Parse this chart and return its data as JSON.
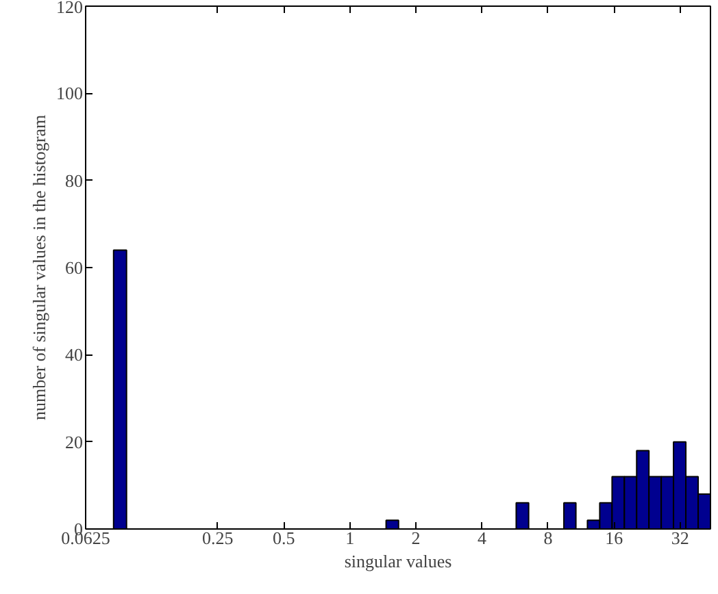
{
  "chart_data": {
    "type": "histogram",
    "xlabel": "singular values",
    "ylabel": "number of singular values in the histogram",
    "bins": [
      0.0838,
      0.096,
      1.463,
      1.667,
      5.73,
      6.53,
      9.45,
      10.72,
      12.1,
      13.77,
      15.67,
      17.83,
      20.28,
      23.07,
      26.25,
      29.86,
      33.98,
      38.67,
      44.0
    ],
    "values": [
      64,
      0,
      2,
      0,
      6,
      0,
      6,
      0,
      2,
      6,
      12,
      12,
      18,
      12,
      12,
      20,
      12,
      8
    ],
    "color": "#00008f",
    "log": "x",
    "xlim": [
      0.0625,
      44.0
    ],
    "ylim": [
      0,
      120
    ],
    "xticks": [
      0.0625,
      0.25,
      0.5,
      1,
      2,
      4,
      8,
      16,
      32
    ],
    "yticks": [
      0,
      20,
      40,
      60,
      80,
      100,
      120
    ],
    "grid": false
  }
}
